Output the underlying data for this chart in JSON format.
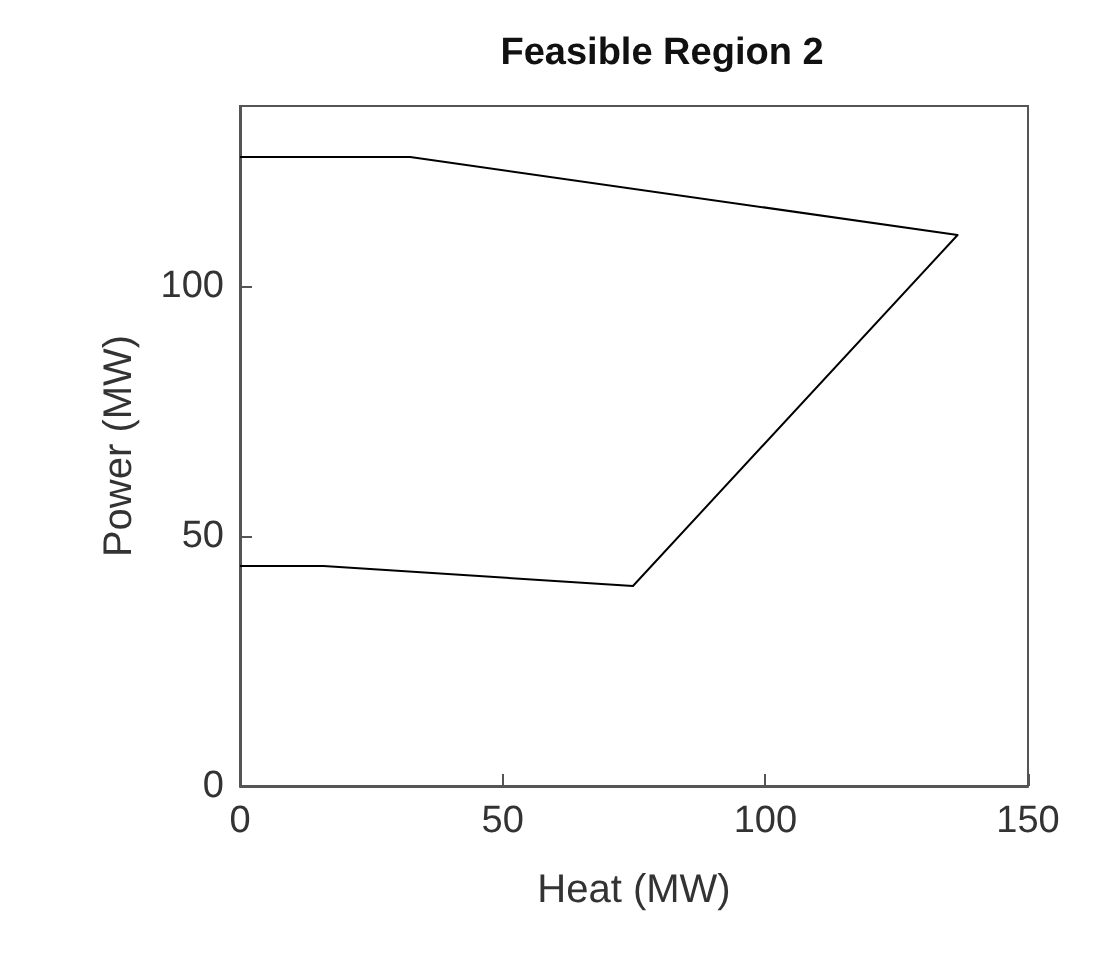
{
  "chart_data": {
    "type": "line",
    "title": "Feasible Region 2",
    "xlabel": "Heat (MW)",
    "ylabel": "Power (MW)",
    "series": [
      {
        "color": "#000000",
        "x": [
          0,
          32.4,
          136.6,
          74.8,
          15.9,
          0
        ],
        "values": [
          125.8,
          125.8,
          110.2,
          40,
          44,
          44
        ]
      }
    ],
    "xlim": [
      0,
      150
    ],
    "xticks": [
      0,
      50,
      100,
      150
    ],
    "ylim": [
      0,
      136
    ],
    "yticks": [
      0,
      50,
      100
    ],
    "grid": false,
    "marker": "none",
    "line_style": "solid"
  }
}
